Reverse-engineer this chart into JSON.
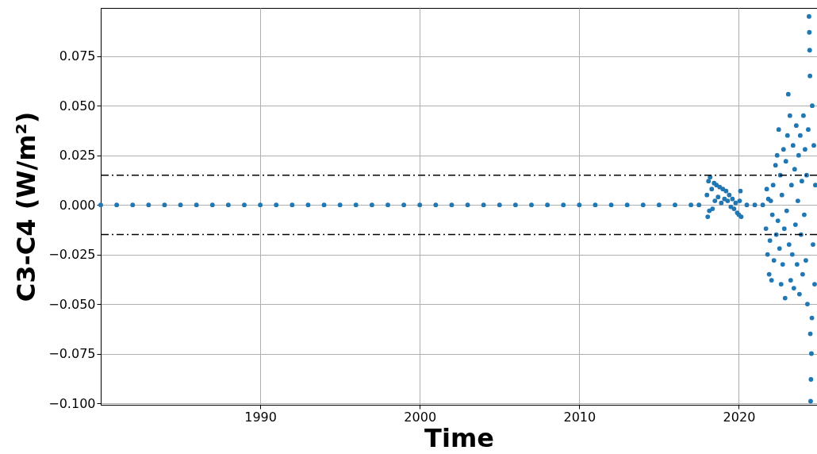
{
  "chart_data": {
    "type": "scatter",
    "xlabel": "Time",
    "ylabel": "C3-C4 (W/m²)",
    "xlim": [
      1980,
      2024.9
    ],
    "xticks": [
      1990,
      2000,
      2010,
      2020
    ],
    "ylim": [
      -0.1008,
      0.0993
    ],
    "yticks": [
      {
        "value": -0.1,
        "label": "−0.100"
      },
      {
        "value": -0.075,
        "label": "−0.075"
      },
      {
        "value": -0.05,
        "label": "−0.050"
      },
      {
        "value": -0.025,
        "label": "−0.025"
      },
      {
        "value": 0,
        "label": "0.000"
      },
      {
        "value": 0.025,
        "label": "0.025"
      },
      {
        "value": 0.05,
        "label": "0.050"
      },
      {
        "value": 0.075,
        "label": "0.075"
      }
    ],
    "grid": true,
    "marker": "circle",
    "ref_lines": [
      {
        "axis": "y",
        "value": 0.015,
        "color": "#000000",
        "line_style": "dashed"
      },
      {
        "axis": "y",
        "value": -0.015,
        "color": "#000000",
        "line_style": "dashed"
      }
    ],
    "series": [
      {
        "color": "#1f77b4",
        "x": [
          1980,
          1981,
          1982,
          1983,
          1984,
          1985,
          1986,
          1987,
          1988,
          1989,
          1990,
          1991,
          1992,
          1993,
          1994,
          1995,
          1996,
          1997,
          1998,
          1999,
          2000,
          2001,
          2002,
          2003,
          2004,
          2005,
          2006,
          2007,
          2008,
          2009,
          2010,
          2011,
          2012,
          2013,
          2014,
          2015,
          2016,
          2017,
          2017.5,
          2018.0,
          2018.05,
          2018.1,
          2018.15,
          2018.2,
          2018.3,
          2018.35,
          2018.45,
          2018.5,
          2018.6,
          2018.7,
          2018.8,
          2018.9,
          2019.0,
          2019.1,
          2019.2,
          2019.3,
          2019.4,
          2019.5,
          2019.6,
          2019.7,
          2019.8,
          2019.9,
          2020.0,
          2020.05,
          2020.1,
          2020.15,
          2020.5,
          2021.0,
          2021.5,
          2021.7,
          2021.75,
          2021.8,
          2021.85,
          2021.9,
          2021.95,
          2022.0,
          2022.05,
          2022.1,
          2022.15,
          2022.2,
          2022.3,
          2022.35,
          2022.4,
          2022.45,
          2022.5,
          2022.55,
          2022.6,
          2022.65,
          2022.7,
          2022.75,
          2022.8,
          2022.85,
          2022.9,
          2022.95,
          2023.0,
          2023.05,
          2023.1,
          2023.15,
          2023.2,
          2023.25,
          2023.3,
          2023.35,
          2023.4,
          2023.45,
          2023.5,
          2023.55,
          2023.6,
          2023.65,
          2023.7,
          2023.75,
          2023.8,
          2023.85,
          2023.9,
          2023.95,
          2024.0,
          2024.05,
          2024.1,
          2024.15,
          2024.2,
          2024.25,
          2024.3,
          2024.35,
          2024.4,
          2024.42,
          2024.44,
          2024.46,
          2024.48,
          2024.5,
          2024.52,
          2024.55,
          2024.58,
          2024.6,
          2024.65,
          2024.7,
          2024.75,
          2024.8
        ],
        "values": [
          0,
          0,
          0,
          0,
          0,
          0,
          0,
          0,
          0,
          0,
          0,
          0,
          0,
          0,
          0,
          0,
          0,
          0,
          0,
          0,
          0,
          0,
          0,
          0,
          0,
          0,
          0,
          0,
          0,
          0,
          0,
          0,
          0,
          0,
          0,
          0,
          0,
          0,
          0,
          0.005,
          -0.006,
          0.012,
          -0.003,
          0.014,
          0.008,
          -0.002,
          0.011,
          0.002,
          0.01,
          0.004,
          0.009,
          0.001,
          0.008,
          0.003,
          0.007,
          0.002,
          0.005,
          -0.001,
          0.003,
          -0.002,
          0.001,
          -0.004,
          -0.005,
          0.002,
          0.007,
          -0.006,
          0,
          0,
          0,
          -0.012,
          0.008,
          -0.025,
          0.003,
          -0.035,
          -0.018,
          0.002,
          -0.038,
          -0.005,
          0.01,
          -0.028,
          0.02,
          -0.015,
          0.025,
          -0.008,
          0.038,
          -0.022,
          0.015,
          -0.04,
          0.005,
          -0.03,
          0.028,
          -0.012,
          -0.047,
          0.022,
          -0.003,
          0.035,
          0.0558,
          -0.02,
          0.045,
          -0.038,
          0.01,
          -0.025,
          0.03,
          -0.042,
          0.018,
          -0.01,
          0.04,
          -0.03,
          0.002,
          0.025,
          -0.045,
          0.035,
          -0.015,
          0.012,
          -0.035,
          0.045,
          -0.005,
          0.028,
          -0.028,
          0.015,
          -0.05,
          0.038,
          0.095,
          0.087,
          0.078,
          0.065,
          -0.065,
          -0.099,
          -0.088,
          -0.075,
          -0.057,
          0.05,
          -0.02,
          0.03,
          -0.04,
          0.01
        ]
      }
    ]
  }
}
